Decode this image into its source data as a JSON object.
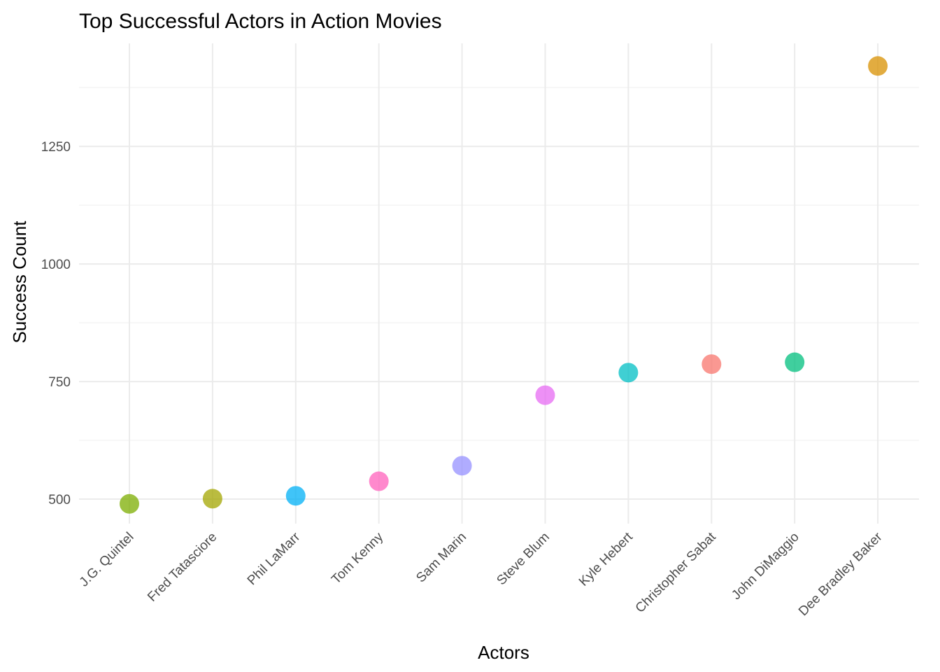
{
  "chart_data": {
    "type": "scatter",
    "title": "Top Successful Actors in Action Movies",
    "xlabel": "Actors",
    "ylabel": "Success Count",
    "ylim": [
      448,
      1469
    ],
    "yticks": [
      500,
      750,
      1000,
      1250
    ],
    "grid": true,
    "legend": "none",
    "categories": [
      "J.G. Quintel",
      "Fred Tatasciore",
      "Phil LaMarr",
      "Tom Kenny",
      "Sam Marin",
      "Steve Blum",
      "Kyle Hebert",
      "Christopher Sabat",
      "John DiMaggio",
      "Dee Bradley Baker"
    ],
    "values": [
      490,
      501,
      507,
      538,
      571,
      721,
      769,
      787,
      791,
      1421
    ],
    "colors": [
      "#7CAE00",
      "#A3A500",
      "#00B0F6",
      "#FF62BC",
      "#9590FF",
      "#E76BF3",
      "#00BFC4",
      "#F8766D",
      "#00BF7D",
      "#D89000"
    ]
  }
}
